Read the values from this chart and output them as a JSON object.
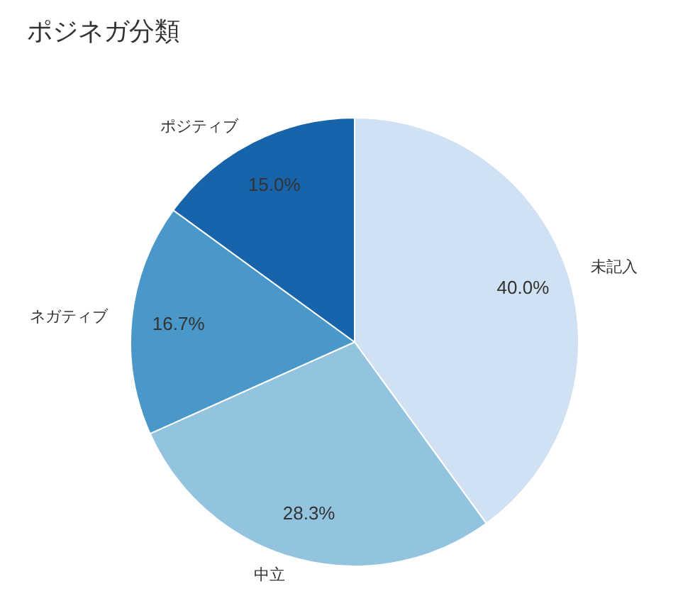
{
  "chart_data": {
    "type": "pie",
    "title": "ポジネガ分類",
    "categories": [
      "未記入",
      "中立",
      "ネガティブ",
      "ポジティブ"
    ],
    "values": [
      40.0,
      28.3,
      16.7,
      15.0
    ],
    "colors": [
      "#cfe1f2",
      "#93c4df",
      "#4a98c9",
      "#1764ab"
    ],
    "value_labels": [
      "40.0%",
      "28.3%",
      "16.7%",
      "15.0%"
    ]
  }
}
